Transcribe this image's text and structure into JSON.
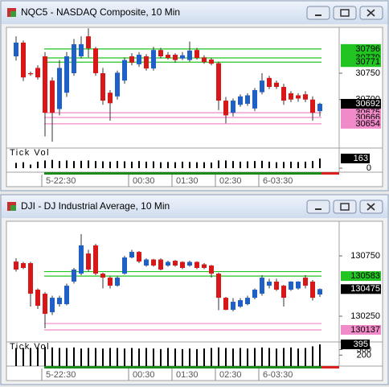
{
  "chart_data": [
    {
      "type": "candlestick",
      "title": "NQC5 - NASDAQ Composite, 10 Min",
      "ylim": [
        30608,
        30837
      ],
      "yticks": [
        30700,
        30750
      ],
      "candles": [
        [
          30782,
          30820,
          30774,
          30808
        ],
        [
          30808,
          30812,
          30735,
          30742
        ],
        [
          30750,
          30753,
          30745,
          30748
        ],
        [
          30760,
          30765,
          30738,
          30742
        ],
        [
          30782,
          30790,
          30630,
          30675
        ],
        [
          30736,
          30742,
          30620,
          30675
        ],
        [
          30682,
          30775,
          30670,
          30760
        ],
        [
          30713,
          30790,
          30705,
          30782
        ],
        [
          30750,
          30815,
          30745,
          30805
        ],
        [
          30782,
          30820,
          30778,
          30805
        ],
        [
          30820,
          30835,
          30780,
          30797
        ],
        [
          30797,
          30800,
          30745,
          30750
        ],
        [
          30750,
          30760,
          30690,
          30698
        ],
        [
          30713,
          30718,
          30660,
          30693
        ],
        [
          30706,
          30755,
          30700,
          30751
        ],
        [
          30736,
          30780,
          30730,
          30775
        ],
        [
          30782,
          30788,
          30765,
          30770
        ],
        [
          30767,
          30790,
          30762,
          30785
        ],
        [
          30782,
          30786,
          30755,
          30759
        ],
        [
          30759,
          30800,
          30755,
          30794
        ],
        [
          30794,
          30798,
          30778,
          30782
        ],
        [
          30785,
          30790,
          30776,
          30779
        ],
        [
          30785,
          30788,
          30770,
          30775
        ],
        [
          30778,
          30790,
          30775,
          30784
        ],
        [
          30775,
          30810,
          30772,
          30793
        ],
        [
          30794,
          30798,
          30776,
          30779
        ],
        [
          30780,
          30784,
          30768,
          30771
        ],
        [
          30776,
          30779,
          30765,
          30768
        ],
        [
          30769,
          30772,
          30680,
          30698
        ],
        [
          30698,
          30705,
          30655,
          30670
        ],
        [
          30675,
          30702,
          30668,
          30698
        ],
        [
          30690,
          30710,
          30686,
          30706
        ],
        [
          30692,
          30712,
          30688,
          30708
        ],
        [
          30683,
          30722,
          30678,
          30718
        ],
        [
          30714,
          30750,
          30710,
          30736
        ],
        [
          30741,
          30745,
          30720,
          30724
        ],
        [
          30732,
          30736,
          30720,
          30724
        ],
        [
          30724,
          30730,
          30690,
          30698
        ],
        [
          30712,
          30716,
          30695,
          30700
        ],
        [
          30708,
          30712,
          30696,
          30702
        ],
        [
          30710,
          30716,
          30695,
          30700
        ],
        [
          30700,
          30706,
          30660,
          30675
        ],
        [
          30678,
          30694,
          30668,
          30692
        ]
      ],
      "up_color": "#1f5fc8",
      "down_color": "#d81818",
      "levels": [
        {
          "value": 30796,
          "color": "#22c422"
        },
        {
          "value": 30779,
          "color": "#22c422"
        },
        {
          "value": 30771,
          "color": "#22c422"
        },
        {
          "value": 30675,
          "color": "#f08ac8"
        },
        {
          "value": 30666,
          "color": "#f08ac8"
        },
        {
          "value": 30654,
          "color": "#f08ac8"
        }
      ],
      "lines": [],
      "xticks": [
        {
          "value": 4,
          "label": "5-22:30"
        },
        {
          "value": 16,
          "label": "00:30"
        },
        {
          "value": 22,
          "label": "01:30"
        },
        {
          "value": 28,
          "label": "02:30"
        },
        {
          "value": 34,
          "label": "6-03:30"
        }
      ],
      "volume": {
        "label": "Tick Vol",
        "ylim": [
          -68,
          340
        ],
        "yticks": [
          0
        ],
        "values": [
          90,
          100,
          60,
          110,
          130,
          140,
          120,
          130,
          120,
          125,
          130,
          120,
          115,
          110,
          120,
          115,
          110,
          120,
          110,
          115,
          100,
          105,
          100,
          110,
          105,
          100,
          100,
          95,
          130,
          130,
          120,
          110,
          115,
          120,
          125,
          110,
          100,
          105,
          110,
          105,
          110,
          120,
          163
        ]
      }
    },
    {
      "type": "candlestick",
      "title": "DJI - DJ Industrial Average, 10 Min",
      "ylim": [
        130037,
        131037
      ],
      "yticks": [
        130250,
        130750
      ],
      "candles": [
        [
          130703,
          130730,
          130620,
          130637
        ],
        [
          130690,
          130700,
          130640,
          130650
        ],
        [
          130690,
          130700,
          130330,
          130437
        ],
        [
          130470,
          130480,
          130310,
          130337
        ],
        [
          130437,
          130450,
          130150,
          130270
        ],
        [
          130283,
          130420,
          130260,
          130403
        ],
        [
          130350,
          130420,
          130330,
          130403
        ],
        [
          130350,
          130520,
          130340,
          130503
        ],
        [
          130537,
          130650,
          130520,
          130637
        ],
        [
          130603,
          130930,
          130590,
          130837
        ],
        [
          130770,
          130800,
          130620,
          130637
        ],
        [
          130837,
          130850,
          130590,
          130603
        ],
        [
          130603,
          130610,
          130480,
          130570
        ],
        [
          130570,
          130580,
          130480,
          130503
        ],
        [
          130503,
          130580,
          130495,
          130570
        ],
        [
          130603,
          130750,
          130595,
          130737
        ],
        [
          130737,
          130800,
          130730,
          130783
        ],
        [
          130783,
          130790,
          130690,
          130703
        ],
        [
          130670,
          130730,
          130660,
          130720
        ],
        [
          130720,
          130725,
          130660,
          130670
        ],
        [
          130720,
          130730,
          130630,
          130637
        ],
        [
          130670,
          130710,
          130660,
          130700
        ],
        [
          130710,
          130715,
          130660,
          130670
        ],
        [
          130700,
          130705,
          130640,
          130650
        ],
        [
          130670,
          130710,
          130660,
          130700
        ],
        [
          130700,
          130705,
          130640,
          130650
        ],
        [
          130680,
          130690,
          130640,
          130650
        ],
        [
          130670,
          130675,
          130570,
          130603
        ],
        [
          130603,
          130610,
          130300,
          130403
        ],
        [
          130403,
          130410,
          130300,
          130303
        ],
        [
          130303,
          130400,
          130290,
          130370
        ],
        [
          130330,
          130400,
          130320,
          130383
        ],
        [
          130350,
          130420,
          130340,
          130403
        ],
        [
          130403,
          130480,
          130390,
          130470
        ],
        [
          130437,
          130590,
          130420,
          130570
        ],
        [
          130503,
          130560,
          130480,
          130537
        ],
        [
          130537,
          130560,
          130460,
          130470
        ],
        [
          130503,
          130510,
          130330,
          130403
        ],
        [
          130470,
          130540,
          130460,
          130537
        ],
        [
          130480,
          130540,
          130470,
          130537
        ],
        [
          130570,
          130590,
          130480,
          130503
        ],
        [
          130537,
          130550,
          130380,
          130403
        ],
        [
          130430,
          130480,
          130410,
          130475
        ]
      ],
      "up_color": "#1f5fc8",
      "down_color": "#d81818",
      "levels": [
        {
          "value": 130583,
          "color": "#22c422"
        },
        {
          "value": 130137,
          "color": "#f08ac8"
        }
      ],
      "lines": [
        {
          "value": 130620,
          "color": "#22c422"
        },
        {
          "value": 130190,
          "color": "#f08ac8"
        }
      ],
      "xticks": [
        {
          "value": 4,
          "label": "5-22:30"
        },
        {
          "value": 16,
          "label": "00:30"
        },
        {
          "value": 22,
          "label": "01:30"
        },
        {
          "value": 28,
          "label": "02:30"
        },
        {
          "value": 34,
          "label": "6-03:30"
        }
      ],
      "volume": {
        "label": "Tick Vol",
        "ylim": [
          0,
          440
        ],
        "yticks": [
          200,
          300
        ],
        "values": [
          330,
          330,
          330,
          340,
          350,
          340,
          330,
          330,
          340,
          320,
          330,
          330,
          320,
          330,
          330,
          320,
          330,
          320,
          330,
          320,
          310,
          330,
          320,
          310,
          320,
          310,
          320,
          330,
          340,
          330,
          320,
          330,
          320,
          330,
          340,
          330,
          320,
          330,
          340,
          320,
          330,
          360,
          395
        ]
      }
    }
  ]
}
